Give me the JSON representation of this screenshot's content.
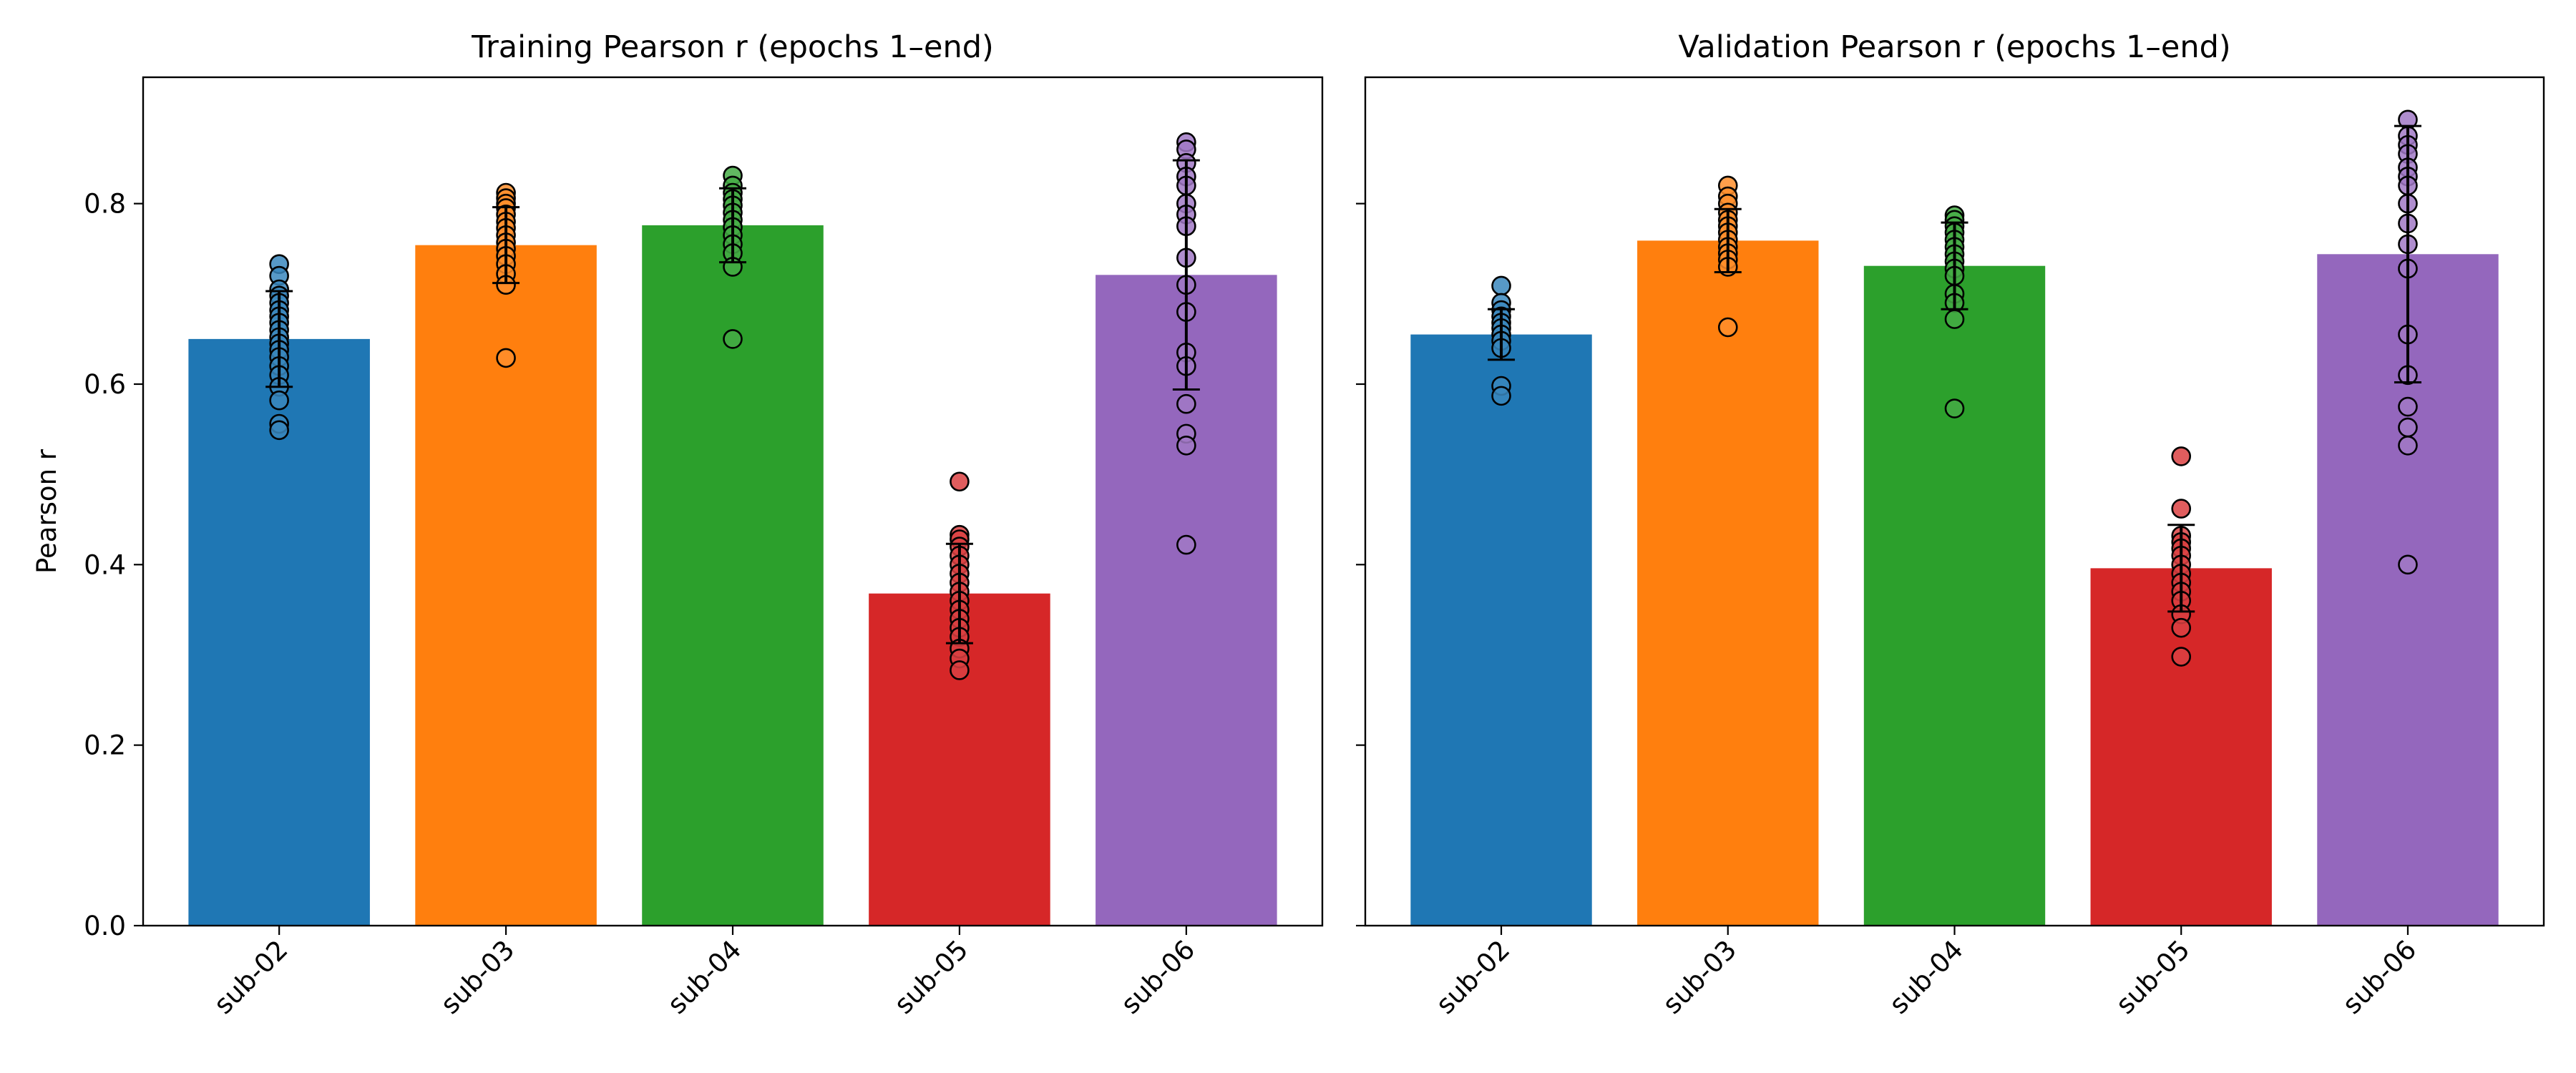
{
  "ylabel": "Pearson r",
  "yticks": [
    0.0,
    0.2,
    0.4,
    0.6,
    0.8
  ],
  "ylim": [
    0,
    0.94
  ],
  "colors": [
    "#1f77b4",
    "#ff7f0e",
    "#2ca02c",
    "#d62728",
    "#9467bd"
  ],
  "chart_data": [
    {
      "type": "bar",
      "title": "Training Pearson r (epochs 1–end)",
      "categories": [
        "sub-02",
        "sub-03",
        "sub-04",
        "sub-05",
        "sub-06"
      ],
      "values": [
        0.65,
        0.754,
        0.776,
        0.368,
        0.721
      ],
      "errors": [
        0.053,
        0.042,
        0.041,
        0.055,
        0.127
      ],
      "points": [
        [
          0.733,
          0.72,
          0.705,
          0.698,
          0.69,
          0.682,
          0.675,
          0.668,
          0.66,
          0.652,
          0.645,
          0.638,
          0.63,
          0.62,
          0.61,
          0.597,
          0.582,
          0.556,
          0.549
        ],
        [
          0.812,
          0.806,
          0.8,
          0.795,
          0.788,
          0.78,
          0.773,
          0.765,
          0.757,
          0.75,
          0.742,
          0.733,
          0.722,
          0.71,
          0.629
        ],
        [
          0.831,
          0.82,
          0.812,
          0.805,
          0.798,
          0.79,
          0.782,
          0.774,
          0.765,
          0.755,
          0.745,
          0.73,
          0.65
        ],
        [
          0.492,
          0.433,
          0.428,
          0.42,
          0.41,
          0.4,
          0.39,
          0.38,
          0.37,
          0.36,
          0.35,
          0.34,
          0.33,
          0.32,
          0.307,
          0.296,
          0.283
        ],
        [
          0.868,
          0.86,
          0.845,
          0.83,
          0.82,
          0.8,
          0.788,
          0.775,
          0.74,
          0.71,
          0.68,
          0.635,
          0.62,
          0.578,
          0.545,
          0.532,
          0.422
        ]
      ]
    },
    {
      "type": "bar",
      "title": "Validation Pearson r (epochs 1–end)",
      "categories": [
        "sub-02",
        "sub-03",
        "sub-04",
        "sub-05",
        "sub-06"
      ],
      "values": [
        0.655,
        0.759,
        0.731,
        0.396,
        0.744
      ],
      "errors": [
        0.028,
        0.035,
        0.048,
        0.048,
        0.142
      ],
      "points": [
        [
          0.709,
          0.69,
          0.682,
          0.675,
          0.668,
          0.662,
          0.655,
          0.648,
          0.64,
          0.598,
          0.587
        ],
        [
          0.82,
          0.808,
          0.8,
          0.79,
          0.782,
          0.775,
          0.768,
          0.76,
          0.752,
          0.745,
          0.738,
          0.73,
          0.663
        ],
        [
          0.787,
          0.782,
          0.775,
          0.768,
          0.76,
          0.752,
          0.744,
          0.736,
          0.728,
          0.72,
          0.7,
          0.69,
          0.672,
          0.573
        ],
        [
          0.52,
          0.462,
          0.432,
          0.425,
          0.418,
          0.41,
          0.4,
          0.39,
          0.38,
          0.37,
          0.36,
          0.345,
          0.33,
          0.298
        ],
        [
          0.893,
          0.875,
          0.865,
          0.855,
          0.84,
          0.83,
          0.82,
          0.8,
          0.778,
          0.755,
          0.728,
          0.655,
          0.61,
          0.575,
          0.552,
          0.532,
          0.4
        ]
      ]
    }
  ]
}
